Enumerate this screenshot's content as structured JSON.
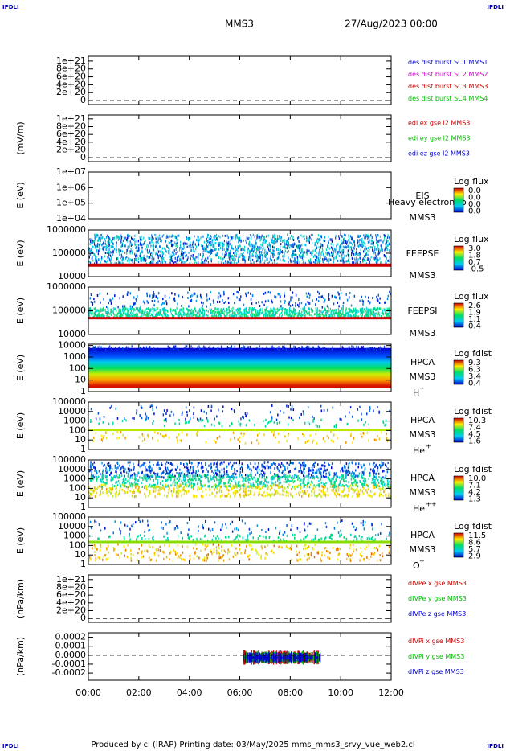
{
  "corner_label": "IPDLI",
  "title": "MMS3",
  "date": "27/Aug/2023 00:00",
  "footer": "Produced by cl (IRAP)   Printing date: 03/May/2025   mms_mms3_srvy_vue_web2.cl",
  "xlim": [
    0,
    12
  ],
  "xticks": [
    {
      "value": 0,
      "label": "00:00"
    },
    {
      "value": 2,
      "label": "02:00"
    },
    {
      "value": 4,
      "label": "04:00"
    },
    {
      "value": 6,
      "label": "06:00"
    },
    {
      "value": 8,
      "label": "08:00"
    },
    {
      "value": 10,
      "label": "10:00"
    },
    {
      "value": 12,
      "label": "12:00"
    }
  ],
  "chart_data": [
    {
      "type": "line",
      "ylim": [
        -1e+20,
        1.12e+21
      ],
      "yticks": [
        {
          "value": 1e+21,
          "label": "1e+21"
        },
        {
          "value": 8e+20,
          "label": "8e+20"
        },
        {
          "value": 6e+20,
          "label": "6e+20"
        },
        {
          "value": 4e+20,
          "label": "4e+20"
        },
        {
          "value": 2e+20,
          "label": "2e+20"
        },
        0
      ],
      "series": [
        {
          "name": "des dist burst SC1 MMS1",
          "color": "#0000cc"
        },
        {
          "name": "des dist burst SC2 MMS2",
          "color": "#cc00cc"
        },
        {
          "name": "des dist burst SC3 MMS3",
          "color": "#cc0000"
        },
        {
          "name": "des dist burst SC4 MMS4",
          "color": "#00bb00"
        }
      ]
    },
    {
      "type": "line",
      "ylabel": "(mV/m)",
      "ylim": [
        -1e+20,
        1.1e+21
      ],
      "yticks": [
        {
          "value": 1e+21,
          "label": "1e+21"
        },
        {
          "value": 8e+20,
          "label": "8e+20"
        },
        {
          "value": 6e+20,
          "label": "6e+20"
        },
        {
          "value": 4e+20,
          "label": "4e+20"
        },
        {
          "value": 2e+20,
          "label": "2e+20"
        },
        0
      ],
      "series": [
        {
          "name": "edi ex gse l2 MMS3",
          "color": "#cc0000"
        },
        {
          "name": "edi ey gse l2 MMS3",
          "color": "#00bb00"
        },
        {
          "name": "edi ez gse l2 MMS3",
          "color": "#0000cc"
        }
      ]
    },
    {
      "type": "spectrogram",
      "ylabel": "E (eV)",
      "log": true,
      "ylim": [
        10000.0,
        10000000.0
      ],
      "yticks": [
        {
          "value": 10000000.0,
          "label": "1e+07"
        },
        {
          "value": 1000000.0,
          "label": "1e+06"
        },
        {
          "value": 100000.0,
          "label": "1e+05"
        },
        {
          "value": 10000.0,
          "label": "1e+04"
        }
      ],
      "instrument": [
        "EIS",
        "MMS3"
      ],
      "note": "Heavy electron to",
      "colorbar": {
        "title": "Log flux",
        "labels": [
          "0.0",
          "0.0",
          "0.0",
          "0.0"
        ]
      }
    },
    {
      "type": "spectrogram",
      "ylabel": "E (eV)",
      "log": true,
      "ylim": [
        10000.0,
        1000000.0
      ],
      "yticks": [
        1000000,
        100000,
        10000
      ],
      "instrument": [
        "FEEPSE",
        "MMS3"
      ],
      "colorbar": {
        "title": "Log flux",
        "labels": [
          "3.0",
          "1.8",
          "0.7",
          "-0.5"
        ]
      }
    },
    {
      "type": "spectrogram",
      "ylabel": "E (eV)",
      "log": true,
      "ylim": [
        10000.0,
        1000000.0
      ],
      "yticks": [
        1000000,
        100000,
        10000
      ],
      "instrument": [
        "FEEPSI",
        "MMS3"
      ],
      "colorbar": {
        "title": "Log flux",
        "labels": [
          "2.6",
          "1.9",
          "1.1",
          "0.4"
        ]
      }
    },
    {
      "type": "spectrogram",
      "ylabel": "E (eV)",
      "log": true,
      "ylim": [
        1,
        13000
      ],
      "yticks": [
        10000,
        1000,
        100,
        10,
        1
      ],
      "instrument": [
        "HPCA",
        "MMS3"
      ],
      "species": {
        "base": "H",
        "charge": "+"
      },
      "colorbar": {
        "title": "Log fdist",
        "labels": [
          "9.3",
          "6.3",
          "3.4",
          "0.4"
        ]
      }
    },
    {
      "type": "spectrogram",
      "ylabel": "E (eV)",
      "log": true,
      "ylim": [
        1,
        100000.0
      ],
      "yticks": [
        100000,
        10000,
        1000,
        100,
        10,
        1
      ],
      "instrument": [
        "HPCA",
        "MMS3"
      ],
      "species": {
        "base": "He",
        "charge": "+"
      },
      "colorbar": {
        "title": "Log fdist",
        "labels": [
          "10.3",
          "7.4",
          "4.5",
          "1.6"
        ]
      }
    },
    {
      "type": "spectrogram",
      "ylabel": "E (eV)",
      "log": true,
      "ylim": [
        1,
        100000.0
      ],
      "yticks": [
        100000,
        10000,
        1000,
        100,
        10,
        1
      ],
      "instrument": [
        "HPCA",
        "MMS3"
      ],
      "species": {
        "base": "He",
        "charge": "++"
      },
      "colorbar": {
        "title": "Log fdist",
        "labels": [
          "10.0",
          "7.1",
          "4.2",
          "1.3"
        ]
      }
    },
    {
      "type": "spectrogram",
      "ylabel": "E (eV)",
      "log": true,
      "ylim": [
        1,
        100000.0
      ],
      "yticks": [
        100000,
        10000,
        1000,
        100,
        10,
        1
      ],
      "instrument": [
        "HPCA",
        "MMS3"
      ],
      "species": {
        "base": "O",
        "charge": "+"
      },
      "colorbar": {
        "title": "Log fdist",
        "labels": [
          "11.5",
          "8.6",
          "5.7",
          "2.9"
        ]
      }
    },
    {
      "type": "line",
      "ylabel": "(nPa/km)",
      "ylim": [
        -1e+20,
        1.12e+21
      ],
      "yticks": [
        {
          "value": 1e+21,
          "label": "1e+21"
        },
        {
          "value": 8e+20,
          "label": "8e+20"
        },
        {
          "value": 6e+20,
          "label": "6e+20"
        },
        {
          "value": 4e+20,
          "label": "4e+20"
        },
        {
          "value": 2e+20,
          "label": "2e+20"
        },
        0
      ],
      "series": [
        {
          "name": "dIVPe x gse MMS3",
          "color": "#cc0000"
        },
        {
          "name": "dIVPe y gse MMS3",
          "color": "#00bb00"
        },
        {
          "name": "dIVPe z gse MMS3",
          "color": "#0000cc"
        }
      ]
    },
    {
      "type": "line",
      "ylabel": "(nPa/km)",
      "ylim": [
        -0.00028,
        0.00025
      ],
      "yticks": [
        0.0002,
        0.0001,
        {
          "value": 0,
          "label": "0.0000"
        },
        -0.0001,
        -0.0002
      ],
      "series": [
        {
          "name": "dIVPi x gse MMS3",
          "color": "#cc0000"
        },
        {
          "name": "dIVPi y gse MMS3",
          "color": "#00bb00"
        },
        {
          "name": "dIVPi z gse MMS3",
          "color": "#0000cc"
        }
      ]
    }
  ]
}
